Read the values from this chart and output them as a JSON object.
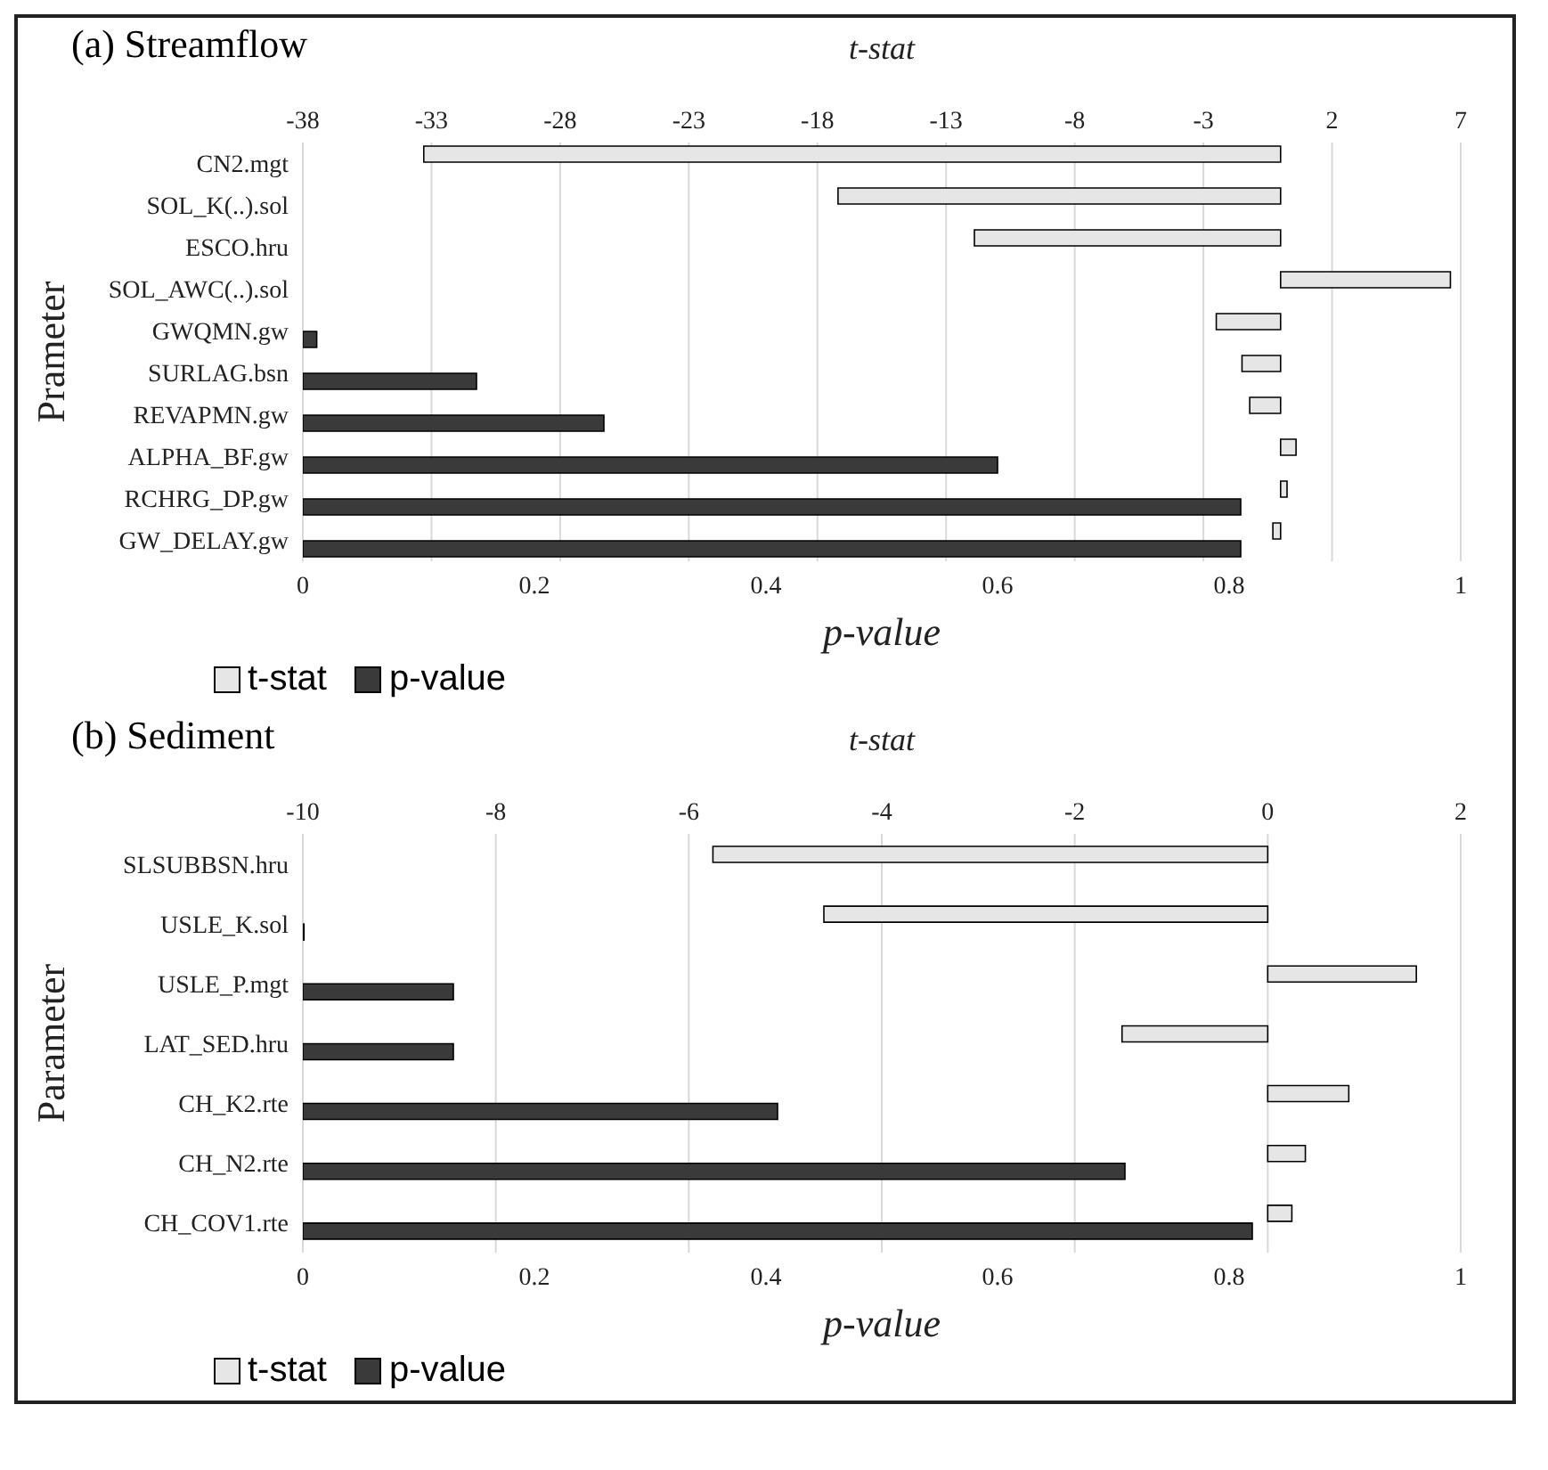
{
  "chart_data": [
    {
      "type": "bar",
      "orientation": "horizontal",
      "title": "(a) Streamflow",
      "ylabel": "Prameter",
      "xlabel": "p-value",
      "x2label": "t-stat",
      "categories": [
        "CN2.mgt",
        "SOL_K(..).sol",
        "ESCO.hru",
        "SOL_AWC(..).sol",
        "GWQMN.gw",
        "SURLAG.bsn",
        "REVAPMN.gw",
        "ALPHA_BF.gw",
        "RCHRG_DP.gw",
        "GW_DELAY.gw"
      ],
      "series": [
        {
          "name": "t-stat",
          "color": "#e6e6e6",
          "axis": "x2",
          "values": [
            -33.3,
            -17.2,
            -11.9,
            6.6,
            -2.5,
            -1.5,
            -1.2,
            0.6,
            0.25,
            -0.3
          ]
        },
        {
          "name": "p-value",
          "color": "#3a3a3a",
          "values": [
            null,
            null,
            null,
            null,
            0.012,
            0.15,
            0.26,
            0.6,
            0.81,
            0.81
          ]
        }
      ],
      "xlim": [
        0,
        1
      ],
      "xticks": [
        0,
        0.2,
        0.4,
        0.6,
        0.8,
        1
      ],
      "x2lim": [
        -38,
        7
      ],
      "x2ticks": [
        -38,
        -33,
        -28,
        -23,
        -18,
        -13,
        -8,
        -3,
        2,
        7
      ],
      "grid": true,
      "legend": "bottom left"
    },
    {
      "type": "bar",
      "orientation": "horizontal",
      "title": "(b) Sediment",
      "ylabel": "Parameter",
      "xlabel": "p-value",
      "x2label": "t-stat",
      "categories": [
        "SLSUBBSN.hru",
        "USLE_K.sol",
        "USLE_P.mgt",
        "LAT_SED.hru",
        "CH_K2.rte",
        "CH_N2.rte",
        "CH_COV1.rte"
      ],
      "series": [
        {
          "name": "t-stat",
          "color": "#e6e6e6",
          "axis": "x2",
          "values": [
            -5.75,
            -4.6,
            1.54,
            -1.51,
            0.84,
            0.39,
            0.25
          ]
        },
        {
          "name": "p-value",
          "color": "#3a3a3a",
          "values": [
            null,
            0.001,
            0.13,
            0.13,
            0.41,
            0.71,
            0.82
          ]
        }
      ],
      "xlim": [
        0,
        1
      ],
      "xticks": [
        0,
        0.2,
        0.4,
        0.6,
        0.8,
        1
      ],
      "x2lim": [
        -10,
        2
      ],
      "x2ticks": [
        -10,
        -8,
        -6,
        -4,
        -2,
        0,
        2
      ],
      "grid": true,
      "legend": "bottom left"
    }
  ]
}
